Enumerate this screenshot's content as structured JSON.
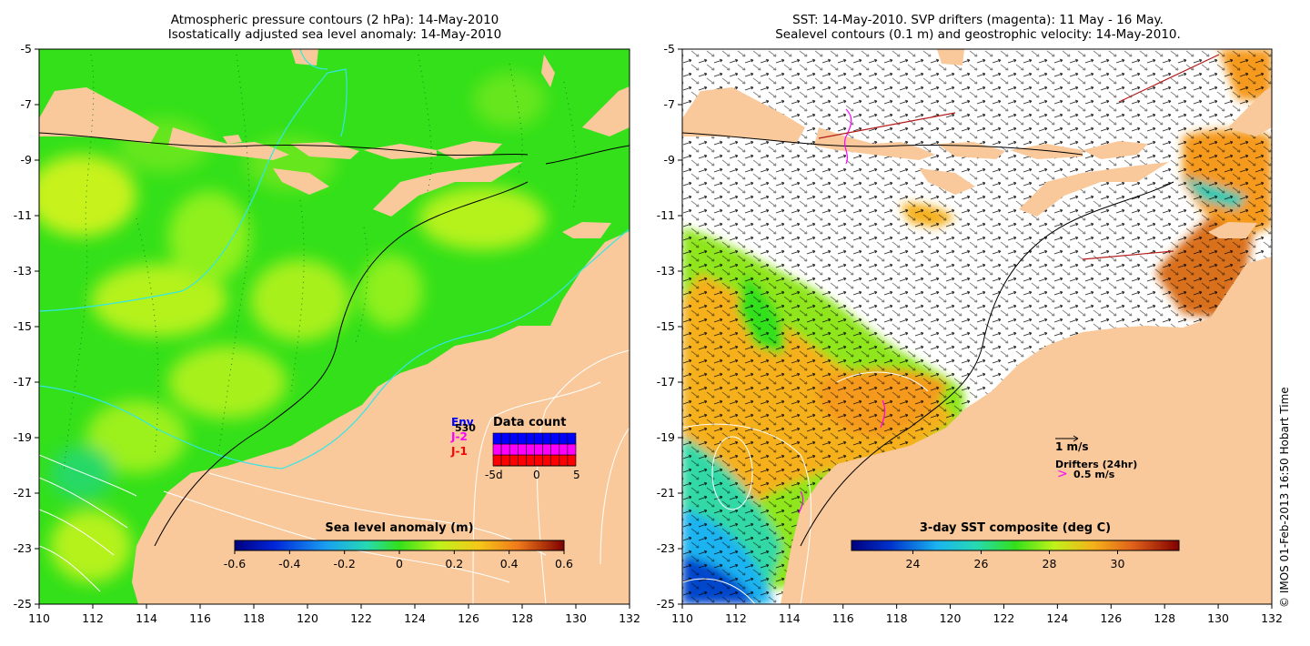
{
  "left_panel": {
    "title_line1": "Atmospheric pressure contours (2 hPa): 14-May-2010",
    "title_line2": "Isostatically adjusted sea level anomaly: 14-May-2010",
    "x_ticks": [
      "110",
      "112",
      "114",
      "116",
      "118",
      "120",
      "122",
      "124",
      "126",
      "128",
      "130",
      "132"
    ],
    "y_ticks": [
      "-5",
      "-7",
      "-9",
      "-11",
      "-13",
      "-15",
      "-17",
      "-19",
      "-21",
      "-23",
      "-25"
    ],
    "colorbar": {
      "title": "Sea level anomaly (m)",
      "ticks": [
        "-0.6",
        "-0.4",
        "-0.2",
        "0",
        "0.2",
        "0.4",
        "0.6"
      ],
      "range": [
        -0.6,
        0.6
      ]
    },
    "data_count": {
      "title": "Data count",
      "labels": [
        "Env",
        "J-2",
        "J-1"
      ],
      "label_colors": [
        "#0000ff",
        "#ff00ff",
        "#ff0000"
      ],
      "extra_label": "530",
      "x_ticks": [
        "-5d",
        "0",
        "5"
      ],
      "series": [
        {
          "name": "J-1",
          "color": "#ff0000",
          "values": [
            1,
            1,
            1,
            1,
            1,
            1,
            1,
            1,
            1,
            1
          ]
        },
        {
          "name": "J-2",
          "color": "#ff00ff",
          "values": [
            1,
            1,
            1,
            1,
            1,
            1,
            1,
            1,
            1,
            1
          ]
        },
        {
          "name": "Env",
          "color": "#0000ff",
          "values": [
            1,
            1,
            1,
            1,
            1,
            1,
            1,
            1,
            1,
            1
          ]
        }
      ]
    }
  },
  "right_panel": {
    "title_line1": "SST: 14-May-2010. SVP drifters (magenta): 11 May - 16 May.",
    "title_line2": "Sealevel contours (0.1 m) and geostrophic velocity: 14-May-2010.",
    "x_ticks": [
      "110",
      "112",
      "114",
      "116",
      "118",
      "120",
      "122",
      "124",
      "126",
      "128",
      "130",
      "132"
    ],
    "y_ticks": [
      "-5",
      "-7",
      "-9",
      "-11",
      "-13",
      "-15",
      "-17",
      "-19",
      "-21",
      "-23",
      "-25"
    ],
    "colorbar": {
      "title": "3-day SST composite (deg C)",
      "ticks": [
        "24",
        "26",
        "28",
        "30"
      ],
      "range": [
        22.2,
        31.8
      ]
    },
    "velocity_legend": "1 m/s",
    "drifters_legend": "Drifters (24hr)",
    "drifter_speed": "0.5 m/s",
    "drifter_marker": ">"
  },
  "credit": "© IMOS 01-Feb-2013 16:50 Hobart Time",
  "colors": {
    "land": "#f9c99b",
    "ocean_green": "#33e01a",
    "ocean_yellow": "#b5f21a",
    "sst_orange": "#f5a51a",
    "contour_cyan": "#33e6e6",
    "drifter_magenta": "#ff00ff"
  }
}
